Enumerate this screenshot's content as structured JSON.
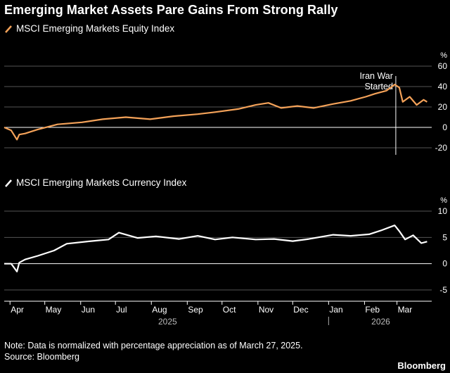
{
  "title": "Emerging Market Assets Pare Gains From Strong Rally",
  "note": "Note: Data is normalized with percentage appreciation as of March 27, 2025.",
  "source": "Source: Bloomberg",
  "brand": "Bloomberg",
  "colors": {
    "equity": "#f4a259",
    "currency": "#ffffff",
    "grid": "#555555",
    "zero": "#ffffff"
  },
  "chart_data": [
    {
      "type": "line",
      "legend": "MSCI Emerging Markets Equity Index",
      "unit": "%",
      "ylim": [
        -20,
        60
      ],
      "yticks": [
        -20,
        0,
        20,
        40,
        60
      ],
      "annotation": {
        "lines": [
          "Iran War",
          "Started"
        ],
        "date": "2026-02-28"
      },
      "series": [
        {
          "name": "MSCI Emerging Markets Equity Index",
          "x": [
            "2025-03-27",
            "2025-04-02",
            "2025-04-07",
            "2025-04-09",
            "2025-04-14",
            "2025-04-25",
            "2025-05-12",
            "2025-06-02",
            "2025-06-20",
            "2025-07-10",
            "2025-07-31",
            "2025-08-20",
            "2025-09-10",
            "2025-09-25",
            "2025-10-15",
            "2025-10-30",
            "2025-11-10",
            "2025-11-21",
            "2025-12-05",
            "2025-12-19",
            "2026-01-05",
            "2026-01-20",
            "2026-02-02",
            "2026-02-10",
            "2026-02-20",
            "2026-02-27",
            "2026-03-03",
            "2026-03-06",
            "2026-03-12",
            "2026-03-18",
            "2026-03-24",
            "2026-03-27"
          ],
          "values": [
            0,
            -3,
            -12,
            -7,
            -6,
            -2,
            3,
            5,
            8,
            10,
            8,
            11,
            13,
            15,
            18,
            22,
            24,
            19,
            21,
            19,
            23,
            26,
            30,
            33,
            36,
            42,
            39,
            25,
            30,
            22,
            27,
            25
          ]
        }
      ]
    },
    {
      "type": "line",
      "legend": "MSCI Emerging Markets Currency Index",
      "unit": "%",
      "ylim": [
        -5,
        10
      ],
      "yticks": [
        -5,
        0,
        5,
        10
      ],
      "series": [
        {
          "name": "MSCI Emerging Markets Currency Index",
          "x": [
            "2025-03-27",
            "2025-04-02",
            "2025-04-07",
            "2025-04-09",
            "2025-04-14",
            "2025-04-25",
            "2025-05-09",
            "2025-05-20",
            "2025-06-10",
            "2025-06-25",
            "2025-07-04",
            "2025-07-20",
            "2025-08-05",
            "2025-08-25",
            "2025-09-10",
            "2025-09-25",
            "2025-10-10",
            "2025-10-30",
            "2025-11-15",
            "2025-12-01",
            "2025-12-15",
            "2026-01-05",
            "2026-01-20",
            "2026-02-05",
            "2026-02-15",
            "2026-02-27",
            "2026-03-03",
            "2026-03-08",
            "2026-03-15",
            "2026-03-22",
            "2026-03-27"
          ],
          "values": [
            0,
            0,
            -1.5,
            0.2,
            0.8,
            1.5,
            2.5,
            3.8,
            4.3,
            4.6,
            5.9,
            4.9,
            5.2,
            4.7,
            5.3,
            4.6,
            5.0,
            4.6,
            4.7,
            4.3,
            4.7,
            5.5,
            5.3,
            5.6,
            6.3,
            7.3,
            6.2,
            4.6,
            5.4,
            3.9,
            4.2
          ]
        }
      ]
    }
  ],
  "xaxis": {
    "months": [
      "Apr",
      "May",
      "Jun",
      "Jul",
      "Aug",
      "Sep",
      "Oct",
      "Nov",
      "Dec",
      "Jan",
      "Feb",
      "Mar"
    ],
    "month_dates": [
      "2025-04-01",
      "2025-05-01",
      "2025-06-01",
      "2025-07-01",
      "2025-08-01",
      "2025-09-01",
      "2025-10-01",
      "2025-11-01",
      "2025-12-01",
      "2026-01-01",
      "2026-02-01",
      "2026-03-01"
    ],
    "years": [
      "2025",
      "2026"
    ],
    "year_dates": [
      "2025-08-15",
      "2026-02-15"
    ],
    "year_boundary": "2026-01-01"
  }
}
